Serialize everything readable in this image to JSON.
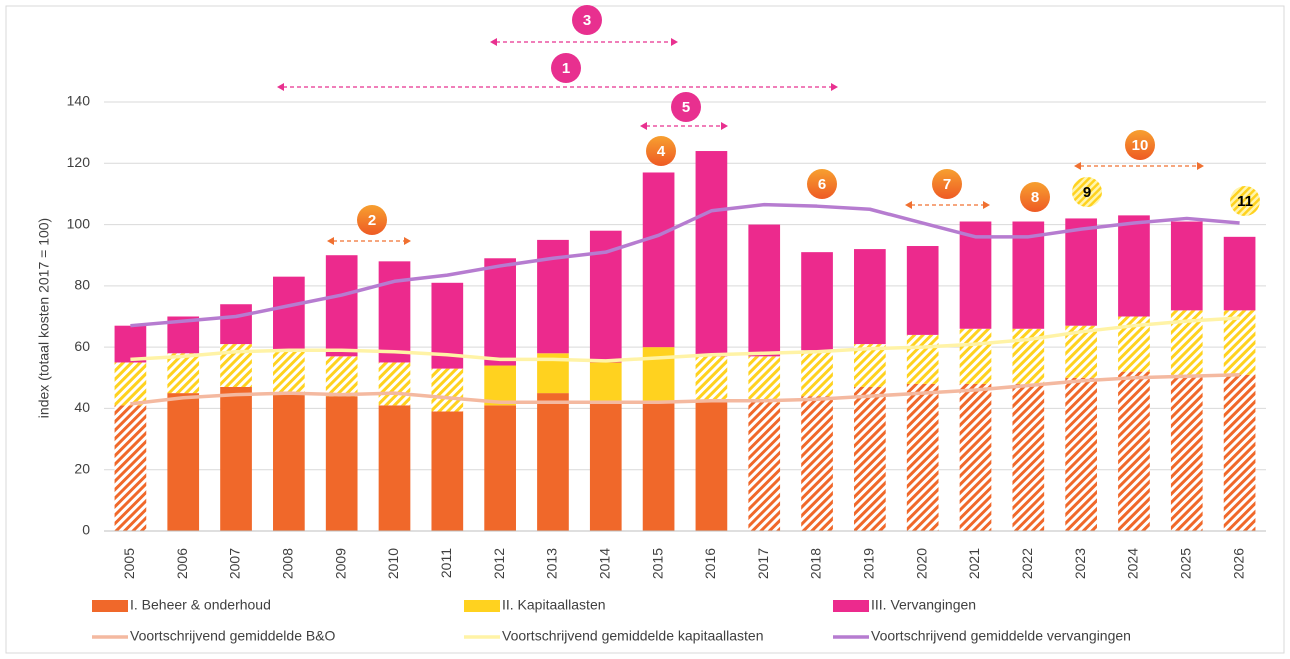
{
  "chart_data": {
    "type": "bar",
    "stacked": true,
    "y_label": "index (totaal kosten 2017 = 100)",
    "categories": [
      "2005",
      "2006",
      "2007",
      "2008",
      "2009",
      "2010",
      "2011",
      "2012",
      "2013",
      "2014",
      "2015",
      "2016",
      "2017",
      "2018",
      "2019",
      "2020",
      "2021",
      "2022",
      "2023",
      "2024",
      "2025",
      "2026"
    ],
    "ylim": [
      0,
      140
    ],
    "yticks": [
      0,
      20,
      40,
      60,
      80,
      100,
      120,
      140
    ],
    "grid": true,
    "series": [
      {
        "name": "I. Beheer & onderhoud",
        "kind": "bar",
        "color": "#f0682a",
        "values": [
          41,
          45,
          47,
          45,
          44,
          41,
          39,
          41,
          45,
          42,
          42,
          42,
          42,
          44,
          47,
          48,
          48,
          48,
          50,
          52,
          51,
          51
        ],
        "hatched": [
          true,
          false,
          false,
          false,
          false,
          false,
          false,
          false,
          false,
          false,
          false,
          false,
          true,
          true,
          true,
          true,
          true,
          true,
          true,
          true,
          true,
          true
        ]
      },
      {
        "name": "II. Kapitaallasten",
        "kind": "bar",
        "color": "#ffd21f",
        "values": [
          14,
          13,
          14,
          14,
          13,
          14,
          14,
          13,
          13,
          13,
          18,
          15,
          15,
          15,
          14,
          16,
          18,
          18,
          17,
          18,
          21,
          21
        ],
        "hatched": [
          true,
          true,
          true,
          true,
          true,
          true,
          true,
          false,
          false,
          false,
          false,
          true,
          true,
          true,
          true,
          true,
          true,
          true,
          true,
          true,
          true,
          true
        ]
      },
      {
        "name": "III. Vervangingen",
        "kind": "bar",
        "color": "#ec2a8d",
        "values": [
          12,
          12,
          13,
          24,
          33,
          33,
          28,
          35,
          37,
          43,
          57,
          67,
          43,
          32,
          31,
          29,
          35,
          35,
          35,
          33,
          29,
          24
        ],
        "hatched": [
          false,
          false,
          false,
          false,
          false,
          false,
          false,
          false,
          false,
          false,
          false,
          false,
          false,
          false,
          false,
          false,
          false,
          false,
          false,
          false,
          false,
          false
        ]
      },
      {
        "name": "Voortschrijvend gemiddelde B&O",
        "kind": "line",
        "color": "#f4b9a0",
        "values": [
          41.5,
          43.5,
          44.5,
          45,
          44.5,
          45,
          43.5,
          42,
          42,
          42,
          42,
          42.5,
          42.5,
          43,
          44,
          45,
          46,
          47.5,
          49,
          50,
          50.5,
          51
        ]
      },
      {
        "name": "Voortschrijvend gemiddelde kapitaallasten",
        "kind": "line",
        "color": "#fff3a6",
        "values": [
          56,
          57,
          58.5,
          59,
          59,
          58.5,
          57.5,
          56,
          56,
          55.5,
          56.5,
          57.5,
          58,
          58.5,
          59.5,
          60,
          61,
          62.5,
          65,
          67,
          68.5,
          69.5
        ]
      },
      {
        "name": "Voortschrijvend gemiddelde vervangingen",
        "kind": "line",
        "color": "#b67cd0",
        "values": [
          67,
          68.5,
          70,
          73.5,
          77,
          81.5,
          83.5,
          86.5,
          89,
          91,
          96.5,
          104.5,
          106.5,
          106,
          105,
          100.5,
          96,
          96,
          98.5,
          100.5,
          102,
          100.5
        ]
      }
    ],
    "annotations": [
      "1",
      "2",
      "3",
      "4",
      "5",
      "6",
      "7",
      "8",
      "9",
      "10",
      "11"
    ]
  }
}
